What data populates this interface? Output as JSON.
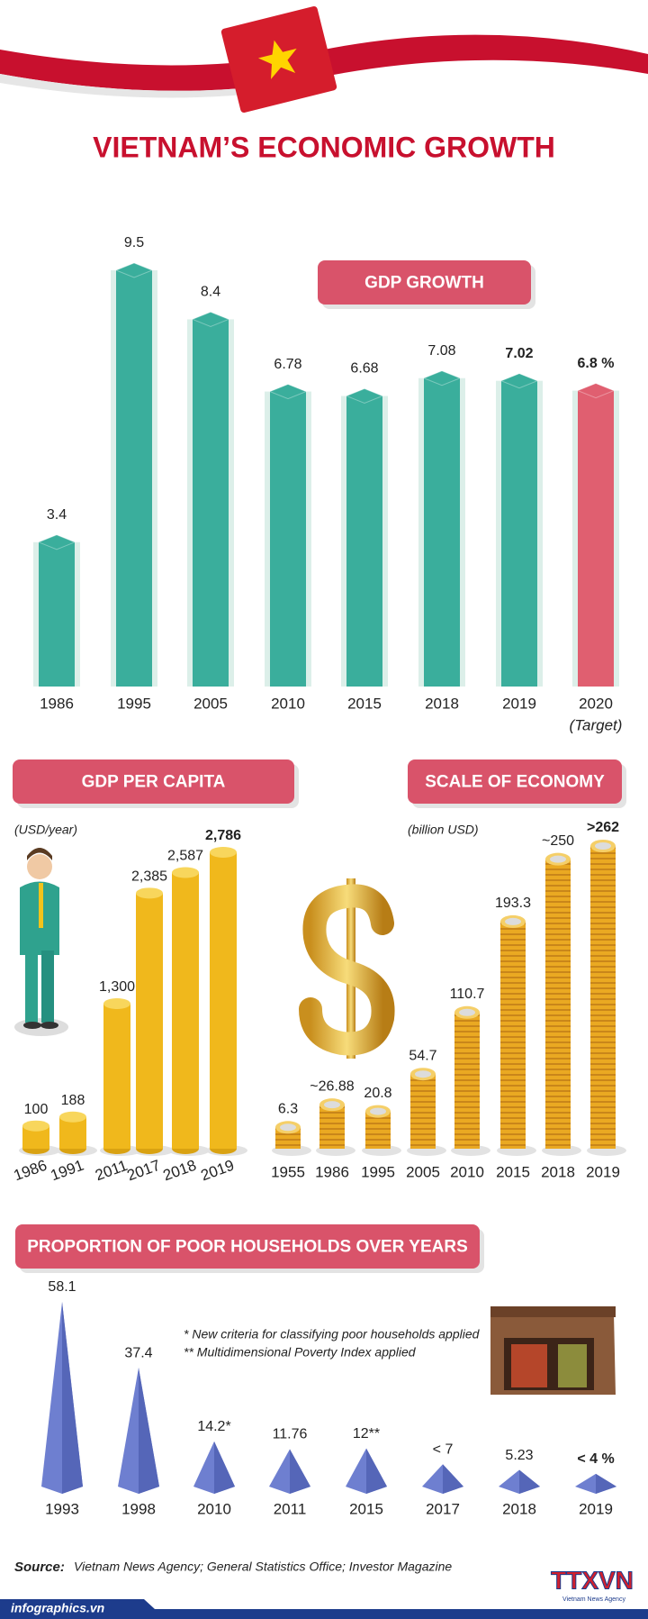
{
  "header": {
    "title": "VIETNAM’S ECONOMIC GROWTH"
  },
  "chart_data": [
    {
      "type": "bar",
      "title": "GDP GROWTH",
      "categories": [
        "1986",
        "1995",
        "2005",
        "2010",
        "2015",
        "2018",
        "2019",
        "2020"
      ],
      "category_note": "(Target)",
      "values": [
        3.4,
        9.5,
        8.4,
        6.78,
        6.68,
        7.08,
        7.02,
        6.8
      ],
      "value_labels": [
        "3.4",
        "9.5",
        "8.4",
        "6.78",
        "6.68",
        "7.08",
        "7.02",
        "6.8 %"
      ],
      "colors": [
        "#3aae9c",
        "#3aae9c",
        "#3aae9c",
        "#3aae9c",
        "#3aae9c",
        "#3aae9c",
        "#3aae9c",
        "#e05f70"
      ]
    },
    {
      "type": "cylinder",
      "title": "GDP PER CAPITA",
      "unit": "(USD/year)",
      "categories": [
        "1986",
        "1991",
        "2011",
        "2017",
        "2018",
        "2019"
      ],
      "values": [
        100,
        188,
        1300,
        2385,
        2587,
        2786
      ],
      "value_labels": [
        "100",
        "188",
        "1,300",
        "2,385",
        "2,587",
        "2,786"
      ],
      "color": "#f0b81c"
    },
    {
      "type": "coins",
      "title": "SCALE OF ECONOMY",
      "unit": "(billion USD)",
      "categories": [
        "1955",
        "1986",
        "1995",
        "2005",
        "2010",
        "2015",
        "2018",
        "2019"
      ],
      "values": [
        6.3,
        26.88,
        20.8,
        54.7,
        110.7,
        193.3,
        250,
        262
      ],
      "value_labels": [
        "6.3",
        "~26.88",
        "20.8",
        "54.7",
        "110.7",
        "193.3",
        "~250",
        ">262"
      ],
      "color": "#eaa922"
    },
    {
      "type": "spike",
      "title": "PROPORTION OF POOR HOUSEHOLDS OVER YEARS",
      "categories": [
        "1993",
        "1998",
        "2010",
        "2011",
        "2015",
        "2017",
        "2018",
        "2019"
      ],
      "values": [
        58.1,
        37.4,
        14.2,
        11.76,
        12,
        7,
        5.23,
        4
      ],
      "value_labels": [
        "58.1",
        "37.4",
        "14.2*",
        "11.76",
        "12**",
        "< 7",
        "5.23",
        "< 4 %"
      ],
      "notes": [
        "* New criteria for classifying poor households applied",
        "** Multidimensional Poverty Index applied"
      ],
      "color": "#6e7fd0"
    }
  ],
  "source": {
    "label": "Source:",
    "text": "Vietnam News Agency;  General Statistics Office; Investor Magazine"
  },
  "footer": {
    "site": "infographics.vn",
    "logo": "TTXVN",
    "logo_caption": "Vietnam News Agency"
  }
}
